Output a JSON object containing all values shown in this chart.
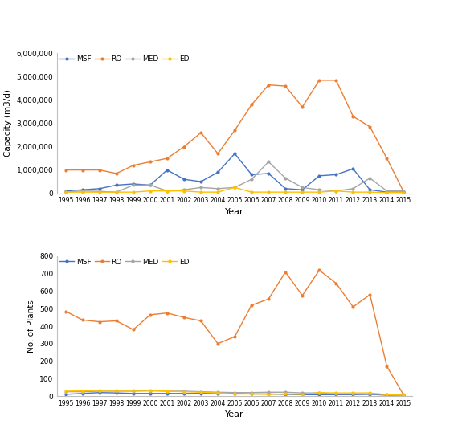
{
  "years": [
    1995,
    1996,
    1997,
    1998,
    1999,
    2000,
    2001,
    2002,
    2003,
    2004,
    2005,
    2006,
    2007,
    2008,
    2009,
    2010,
    2011,
    2012,
    2013,
    2014,
    2015
  ],
  "capacity": {
    "MSF": [
      100000,
      150000,
      200000,
      350000,
      400000,
      350000,
      1000000,
      600000,
      500000,
      900000,
      1700000,
      800000,
      850000,
      200000,
      150000,
      750000,
      800000,
      1050000,
      150000,
      50000,
      50000
    ],
    "RO": [
      1000000,
      1000000,
      1000000,
      850000,
      1200000,
      1350000,
      1500000,
      2000000,
      2600000,
      1700000,
      2700000,
      3800000,
      4650000,
      4600000,
      3700000,
      4850000,
      4850000,
      3300000,
      2850000,
      1500000,
      50000
    ],
    "MED": [
      50000,
      100000,
      80000,
      50000,
      350000,
      350000,
      100000,
      150000,
      250000,
      200000,
      250000,
      600000,
      1350000,
      650000,
      250000,
      150000,
      100000,
      200000,
      650000,
      100000,
      100000
    ],
    "ED": [
      50000,
      50000,
      50000,
      50000,
      50000,
      100000,
      100000,
      100000,
      50000,
      50000,
      250000,
      50000,
      50000,
      50000,
      50000,
      50000,
      100000,
      50000,
      50000,
      30000,
      30000
    ]
  },
  "plants": {
    "MSF": [
      10,
      15,
      20,
      18,
      15,
      15,
      15,
      15,
      15,
      15,
      15,
      12,
      12,
      10,
      8,
      8,
      8,
      8,
      10,
      5,
      5
    ],
    "RO": [
      485,
      435,
      425,
      430,
      380,
      465,
      475,
      450,
      430,
      300,
      340,
      520,
      555,
      710,
      575,
      720,
      645,
      510,
      580,
      170,
      5
    ],
    "MED": [
      25,
      25,
      28,
      28,
      28,
      30,
      28,
      28,
      25,
      22,
      20,
      20,
      22,
      22,
      18,
      18,
      12,
      12,
      12,
      8,
      8
    ],
    "ED": [
      28,
      30,
      32,
      32,
      32,
      32,
      28,
      25,
      22,
      18,
      12,
      12,
      10,
      12,
      10,
      20,
      18,
      18,
      18,
      8,
      5
    ]
  },
  "colors": {
    "MSF": "#4472C4",
    "RO": "#ED7D31",
    "MED": "#A5A5A5",
    "ED": "#FFC000"
  },
  "capacity_ylim": [
    0,
    6000000
  ],
  "capacity_yticks": [
    0,
    1000000,
    2000000,
    3000000,
    4000000,
    5000000,
    6000000
  ],
  "plants_ylim": [
    0,
    800
  ],
  "plants_yticks": [
    0,
    100,
    200,
    300,
    400,
    500,
    600,
    700,
    800
  ],
  "ylabel_top": "Capacity (m3/d)",
  "ylabel_bottom": "No. of Plants",
  "xlabel": "Year",
  "series_order": [
    "MSF",
    "RO",
    "MED",
    "ED"
  ]
}
